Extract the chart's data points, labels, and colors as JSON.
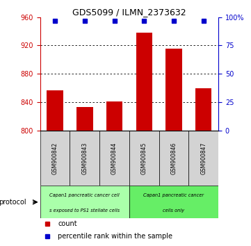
{
  "title": "GDS5099 / ILMN_2373632",
  "samples": [
    "GSM900842",
    "GSM900843",
    "GSM900844",
    "GSM900845",
    "GSM900846",
    "GSM900847"
  ],
  "counts": [
    857,
    833,
    841,
    938,
    916,
    860
  ],
  "percentile_ranks": [
    97,
    97,
    97,
    97,
    97,
    97
  ],
  "ylim_left": [
    800,
    960
  ],
  "ylim_right": [
    0,
    100
  ],
  "yticks_left": [
    800,
    840,
    880,
    920,
    960
  ],
  "yticks_right": [
    0,
    25,
    50,
    75,
    100
  ],
  "bar_color": "#cc0000",
  "dot_color": "#0000cc",
  "bar_bottom": 800,
  "protocol_groups": [
    {
      "label": "Capan1 pancreatic cancer cell\ns exposed to PS1 stellate cells",
      "start": 0,
      "end": 3,
      "color": "#66ee66"
    },
    {
      "label": "Capan1 pancreatic cancer\ncells only",
      "start": 3,
      "end": 6,
      "color": "#66ee66"
    }
  ],
  "protocol_label": "protocol",
  "legend_items": [
    {
      "color": "#cc0000",
      "label": "count"
    },
    {
      "color": "#0000cc",
      "label": "percentile rank within the sample"
    }
  ],
  "left_axis_color": "#cc0000",
  "right_axis_color": "#0000cc",
  "bg_color": "#ffffff",
  "sample_box_color": "#d3d3d3",
  "title_fontsize": 9,
  "legend_fontsize": 7,
  "tick_fontsize": 7
}
